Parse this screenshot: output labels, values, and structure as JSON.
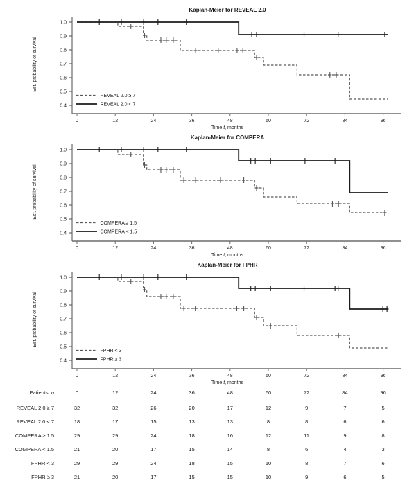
{
  "figure": {
    "background": "#ffffff",
    "colors": {
      "solid_line": "#1c1c1c",
      "dashed_line": "#575757",
      "axis": "#6b6b6b",
      "text": "#1a1a1a"
    },
    "ylabel": "Est. probability of survival",
    "xlabel": "Time t, months",
    "xlabel_parts": [
      {
        "text": "Time ",
        "italic": false
      },
      {
        "text": "t",
        "italic": true
      },
      {
        "text": ", months",
        "italic": false
      }
    ]
  },
  "chart_data": [
    {
      "type": "line",
      "subtype": "kaplan-meier-step",
      "title": "Kaplan-Meier for REVEAL 2.0",
      "xlabel": "Time t, months",
      "ylabel": "Est. probability of survival",
      "xlim": [
        0,
        101
      ],
      "ylim": [
        0.37,
        1.03
      ],
      "xticks": [
        0,
        12,
        24,
        36,
        48,
        60,
        72,
        84,
        96
      ],
      "yticks": [
        1.0,
        0.9,
        0.8,
        0.7,
        0.6,
        0.5,
        0.4
      ],
      "grid": false,
      "legend_position": "lower-left",
      "series": [
        {
          "id": "reveal20-ge7",
          "name": "REVEAL 2.0 ≥ 7",
          "line_style": "dashed",
          "steps": [
            [
              0,
              1.0
            ],
            [
              12.8,
              0.97
            ],
            [
              20.8,
              0.905
            ],
            [
              21.9,
              0.87
            ],
            [
              32.4,
              0.795
            ],
            [
              55.7,
              0.745
            ],
            [
              58.5,
              0.69
            ],
            [
              69,
              0.62
            ],
            [
              85.5,
              0.445
            ],
            [
              97.5,
              0.445
            ]
          ],
          "censors": [
            [
              16.9,
              0.97
            ],
            [
              21.2,
              0.905
            ],
            [
              26.3,
              0.87
            ],
            [
              28,
              0.87
            ],
            [
              30.2,
              0.87
            ],
            [
              37.2,
              0.795
            ],
            [
              44.3,
              0.795
            ],
            [
              50.2,
              0.795
            ],
            [
              52,
              0.795
            ],
            [
              56.3,
              0.745
            ],
            [
              79.3,
              0.62
            ],
            [
              81.3,
              0.62
            ]
          ]
        },
        {
          "id": "reveal20-lt7",
          "name": "REVEAL 2.0 < 7",
          "line_style": "solid",
          "steps": [
            [
              0,
              1.0
            ],
            [
              50.7,
              0.91
            ],
            [
              97.5,
              0.91
            ]
          ],
          "censors": [
            [
              7,
              1.0
            ],
            [
              13.9,
              1.0
            ],
            [
              20.9,
              1.0
            ],
            [
              25.4,
              1.0
            ],
            [
              34.3,
              1.0
            ],
            [
              54.8,
              0.91
            ],
            [
              56.3,
              0.91
            ],
            [
              71.2,
              0.91
            ],
            [
              81.9,
              0.91
            ],
            [
              96.5,
              0.91
            ]
          ]
        }
      ]
    },
    {
      "type": "line",
      "subtype": "kaplan-meier-step",
      "title": "Kaplan-Meier for COMPERA",
      "xlabel": "Time t, months",
      "ylabel": "Est. probability of survival",
      "xlim": [
        0,
        101
      ],
      "ylim": [
        0.37,
        1.03
      ],
      "xticks": [
        0,
        12,
        24,
        36,
        48,
        60,
        72,
        84,
        96
      ],
      "yticks": [
        1.0,
        0.9,
        0.8,
        0.7,
        0.6,
        0.5,
        0.4
      ],
      "grid": false,
      "legend_position": "lower-left",
      "series": [
        {
          "id": "compera-ge15",
          "name": "COMPERA ≥ 1.5",
          "line_style": "dashed",
          "steps": [
            [
              0,
              1.0
            ],
            [
              12.8,
              0.965
            ],
            [
              20.8,
              0.89
            ],
            [
              21.9,
              0.855
            ],
            [
              32.4,
              0.78
            ],
            [
              55.7,
              0.725
            ],
            [
              58.5,
              0.66
            ],
            [
              69,
              0.61
            ],
            [
              85.5,
              0.545
            ],
            [
              97.5,
              0.545
            ]
          ],
          "censors": [
            [
              16.9,
              0.965
            ],
            [
              21.2,
              0.89
            ],
            [
              26.3,
              0.855
            ],
            [
              28,
              0.855
            ],
            [
              30.2,
              0.855
            ],
            [
              33.5,
              0.78
            ],
            [
              37.2,
              0.78
            ],
            [
              45,
              0.78
            ],
            [
              52.3,
              0.78
            ],
            [
              56.3,
              0.725
            ],
            [
              80.1,
              0.61
            ],
            [
              82,
              0.61
            ],
            [
              96.5,
              0.545
            ]
          ]
        },
        {
          "id": "compera-lt15",
          "name": "COMPERA < 1.5",
          "line_style": "solid",
          "steps": [
            [
              0,
              1.0
            ],
            [
              50.7,
              0.92
            ],
            [
              85.5,
              0.69
            ],
            [
              97.5,
              0.69
            ]
          ],
          "censors": [
            [
              7,
              1.0
            ],
            [
              13.9,
              1.0
            ],
            [
              20.9,
              1.0
            ],
            [
              25.4,
              1.0
            ],
            [
              34.3,
              1.0
            ],
            [
              54.5,
              0.92
            ],
            [
              55.9,
              0.92
            ],
            [
              60.7,
              0.92
            ],
            [
              71.5,
              0.92
            ],
            [
              80.9,
              0.92
            ]
          ]
        }
      ]
    },
    {
      "type": "line",
      "subtype": "kaplan-meier-step",
      "title": "Kaplan-Meier for FPHR",
      "xlabel": "Time t, months",
      "ylabel": "Est. probability of survival",
      "xlim": [
        0,
        101
      ],
      "ylim": [
        0.37,
        1.03
      ],
      "xticks": [
        0,
        12,
        24,
        36,
        48,
        60,
        72,
        84,
        96
      ],
      "yticks": [
        1.0,
        0.9,
        0.8,
        0.7,
        0.6,
        0.5,
        0.4
      ],
      "grid": false,
      "legend_position": "lower-left",
      "series": [
        {
          "id": "fphr-lt3",
          "name": "FPHR < 3",
          "line_style": "dashed",
          "steps": [
            [
              0,
              1.0
            ],
            [
              12.8,
              0.97
            ],
            [
              20.8,
              0.91
            ],
            [
              21.9,
              0.86
            ],
            [
              32.4,
              0.775
            ],
            [
              55.7,
              0.71
            ],
            [
              58.5,
              0.65
            ],
            [
              69,
              0.58
            ],
            [
              85.5,
              0.49
            ],
            [
              97.5,
              0.49
            ]
          ],
          "censors": [
            [
              16.9,
              0.97
            ],
            [
              21.2,
              0.91
            ],
            [
              26.3,
              0.86
            ],
            [
              28,
              0.86
            ],
            [
              30.2,
              0.86
            ],
            [
              33.5,
              0.775
            ],
            [
              37.1,
              0.775
            ],
            [
              50.1,
              0.775
            ],
            [
              52.3,
              0.775
            ],
            [
              56.3,
              0.71
            ],
            [
              60.7,
              0.65
            ],
            [
              82,
              0.58
            ]
          ]
        },
        {
          "id": "fphr-ge3",
          "name": "FPHR ≥ 3",
          "line_style": "solid",
          "steps": [
            [
              0,
              1.0
            ],
            [
              50.7,
              0.92
            ],
            [
              85.5,
              0.77
            ],
            [
              97.5,
              0.77
            ]
          ],
          "censors": [
            [
              7,
              1.0
            ],
            [
              13.9,
              1.0
            ],
            [
              20.9,
              1.0
            ],
            [
              25.4,
              1.0
            ],
            [
              34.3,
              1.0
            ],
            [
              54.5,
              0.92
            ],
            [
              55.9,
              0.92
            ],
            [
              60.7,
              0.92
            ],
            [
              71.2,
              0.92
            ],
            [
              80.9,
              0.92
            ],
            [
              81.9,
              0.92
            ],
            [
              95.9,
              0.77
            ],
            [
              97.2,
              0.77
            ]
          ]
        }
      ]
    }
  ],
  "risk_table": {
    "header_label": "Patients, n",
    "header_parts": [
      {
        "text": "Patients, ",
        "italic": false
      },
      {
        "text": "n",
        "italic": true
      }
    ],
    "time_points": [
      0,
      12,
      24,
      36,
      48,
      60,
      72,
      84,
      96
    ],
    "rows": [
      {
        "label": "REVEAL 2.0 ≥ 7",
        "values": [
          32,
          32,
          26,
          20,
          17,
          12,
          9,
          7,
          5
        ]
      },
      {
        "label": "REVEAL 2.0 < 7",
        "values": [
          18,
          17,
          15,
          13,
          13,
          8,
          8,
          6,
          6
        ]
      },
      {
        "label": "COMPERA ≥ 1.5",
        "values": [
          29,
          29,
          24,
          18,
          16,
          12,
          11,
          9,
          8
        ]
      },
      {
        "label": "COMPERA < 1.5",
        "values": [
          21,
          20,
          17,
          15,
          14,
          8,
          6,
          4,
          3
        ]
      },
      {
        "label": "FPHR < 3",
        "values": [
          29,
          29,
          24,
          18,
          15,
          10,
          8,
          7,
          6
        ]
      },
      {
        "label": "FPHR ≥ 3",
        "values": [
          21,
          20,
          17,
          15,
          15,
          10,
          9,
          6,
          5
        ]
      }
    ]
  }
}
